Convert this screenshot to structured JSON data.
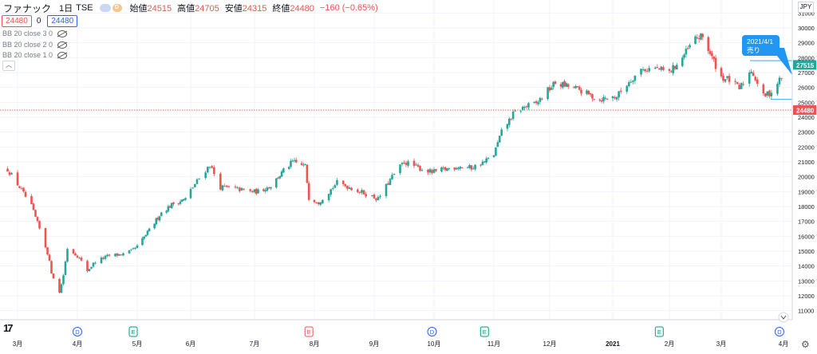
{
  "header": {
    "symbol": "ファナック",
    "interval": "1日",
    "exchange": "TSE",
    "badge_d": "D",
    "open_label": "始値",
    "open_value": "24515",
    "high_label": "高値",
    "high_value": "24705",
    "low_label": "安値",
    "low_value": "24315",
    "close_label": "終値",
    "close_value": "24480",
    "change": "−160 (−0.65%)"
  },
  "price_boxes": {
    "sell": "24480",
    "zero": "0",
    "buy": "24480"
  },
  "indicators": [
    "BB 20 close 3 0",
    "BB 20 close 2 0",
    "BB 20 close 1 0"
  ],
  "currency": "JPY",
  "annotation": {
    "line1": "2021/4/1",
    "line2": "売り"
  },
  "price_labels": {
    "current": "27515",
    "last": "24480"
  },
  "colors": {
    "up": "#26a69a",
    "down": "#ef5350",
    "callout": "#2196f3"
  },
  "events": [
    {
      "label": "D",
      "date": "2020-04-01",
      "color": "#2962ff"
    },
    {
      "label": "E",
      "date": "2020-04-29",
      "color": "#089981"
    },
    {
      "label": "E",
      "date": "2020-07-31",
      "color": "#ef5350"
    },
    {
      "label": "D",
      "date": "2020-09-30",
      "color": "#2962ff"
    },
    {
      "label": "E",
      "date": "2020-10-28",
      "color": "#089981"
    },
    {
      "label": "E",
      "date": "2021-01-27",
      "color": "#089981"
    },
    {
      "label": "D",
      "date": "2021-03-30",
      "color": "#2962ff"
    }
  ],
  "chart_data": {
    "type": "candlestick",
    "y_ticks": [
      11000,
      12000,
      13000,
      14000,
      15000,
      16000,
      17000,
      18000,
      19000,
      20000,
      21000,
      22000,
      23000,
      24000,
      25000,
      26000,
      27000,
      28000,
      29000,
      30000,
      31000
    ],
    "x_ticks": [
      {
        "label": "3月",
        "date": "2020-03-02"
      },
      {
        "label": "4月",
        "date": "2020-04-01"
      },
      {
        "label": "5月",
        "date": "2020-05-01"
      },
      {
        "label": "6月",
        "date": "2020-06-01"
      },
      {
        "label": "7月",
        "date": "2020-07-01"
      },
      {
        "label": "8月",
        "date": "2020-08-03"
      },
      {
        "label": "9月",
        "date": "2020-09-01"
      },
      {
        "label": "10月",
        "date": "2020-10-01"
      },
      {
        "label": "11月",
        "date": "2020-11-02"
      },
      {
        "label": "12月",
        "date": "2020-12-01"
      },
      {
        "label": "2021",
        "date": "2021-01-04"
      },
      {
        "label": "2月",
        "date": "2021-02-01"
      },
      {
        "label": "3月",
        "date": "2021-03-01"
      },
      {
        "label": "4月",
        "date": "2021-04-01"
      }
    ],
    "ylim": [
      11000,
      31000
    ],
    "close_path": [
      [
        "2020-02-26",
        20500
      ],
      [
        "2020-03-03",
        19300
      ],
      [
        "2020-03-09",
        18000
      ],
      [
        "2020-03-13",
        16500
      ],
      [
        "2020-03-17",
        14900
      ],
      [
        "2020-03-19",
        13600
      ],
      [
        "2020-03-23",
        12200
      ],
      [
        "2020-03-25",
        13400
      ],
      [
        "2020-03-27",
        15200
      ],
      [
        "2020-04-01",
        14700
      ],
      [
        "2020-04-06",
        13700
      ],
      [
        "2020-04-10",
        14300
      ],
      [
        "2020-04-17",
        14700
      ],
      [
        "2020-04-24",
        14800
      ],
      [
        "2020-04-28",
        15000
      ],
      [
        "2020-05-01",
        15300
      ],
      [
        "2020-05-08",
        16400
      ],
      [
        "2020-05-15",
        17600
      ],
      [
        "2020-05-22",
        18200
      ],
      [
        "2020-05-29",
        18500
      ],
      [
        "2020-06-05",
        19900
      ],
      [
        "2020-06-10",
        20800
      ],
      [
        "2020-06-15",
        19300
      ],
      [
        "2020-06-22",
        19200
      ],
      [
        "2020-06-29",
        19000
      ],
      [
        "2020-07-03",
        19000
      ],
      [
        "2020-07-10",
        19400
      ],
      [
        "2020-07-17",
        20400
      ],
      [
        "2020-07-22",
        21000
      ],
      [
        "2020-07-29",
        20700
      ],
      [
        "2020-07-31",
        18600
      ],
      [
        "2020-08-05",
        18300
      ],
      [
        "2020-08-10",
        19000
      ],
      [
        "2020-08-14",
        19600
      ],
      [
        "2020-08-20",
        19300
      ],
      [
        "2020-08-27",
        18900
      ],
      [
        "2020-09-03",
        18500
      ],
      [
        "2020-09-10",
        20000
      ],
      [
        "2020-09-16",
        21000
      ],
      [
        "2020-09-23",
        20600
      ],
      [
        "2020-09-30",
        20300
      ],
      [
        "2020-10-07",
        20500
      ],
      [
        "2020-10-14",
        20700
      ],
      [
        "2020-10-21",
        20600
      ],
      [
        "2020-10-28",
        21000
      ],
      [
        "2020-11-02",
        21500
      ],
      [
        "2020-11-06",
        23000
      ],
      [
        "2020-11-12",
        24200
      ],
      [
        "2020-11-18",
        24700
      ],
      [
        "2020-11-24",
        24900
      ],
      [
        "2020-11-30",
        25800
      ],
      [
        "2020-12-04",
        26300
      ],
      [
        "2020-12-10",
        26100
      ],
      [
        "2020-12-16",
        25900
      ],
      [
        "2020-12-22",
        25500
      ],
      [
        "2020-12-28",
        25200
      ],
      [
        "2021-01-06",
        25400
      ],
      [
        "2021-01-12",
        26400
      ],
      [
        "2021-01-18",
        27200
      ],
      [
        "2021-01-25",
        27300
      ],
      [
        "2021-02-01",
        27000
      ],
      [
        "2021-02-08",
        28000
      ],
      [
        "2021-02-15",
        29300
      ],
      [
        "2021-02-19",
        29400
      ],
      [
        "2021-02-24",
        28000
      ],
      [
        "2021-03-01",
        26700
      ],
      [
        "2021-03-05",
        26500
      ],
      [
        "2021-03-10",
        25900
      ],
      [
        "2021-03-16",
        27200
      ],
      [
        "2021-03-22",
        25400
      ],
      [
        "2021-03-26",
        25700
      ],
      [
        "2021-03-31",
        26700
      ]
    ]
  }
}
